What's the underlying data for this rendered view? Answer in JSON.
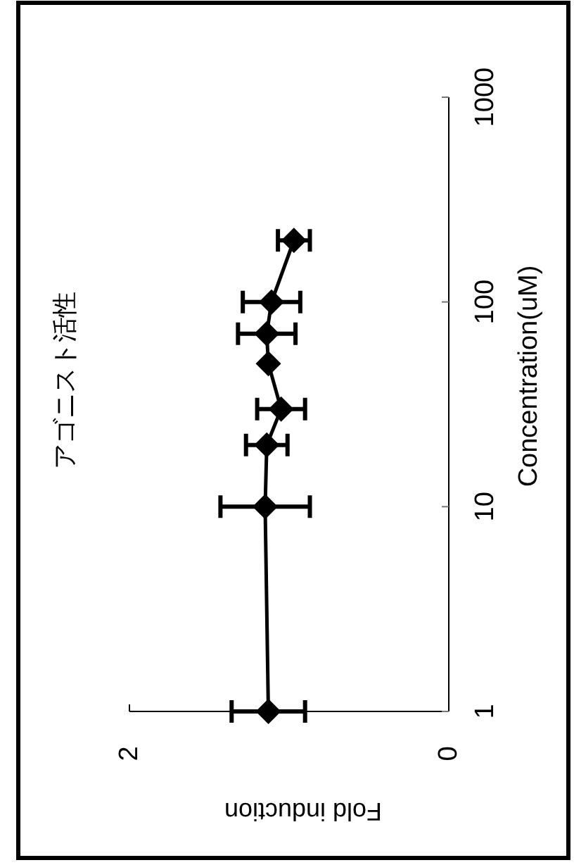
{
  "chart_data": {
    "type": "line",
    "title": "アゴニスト活性",
    "xlabel": "Fold induction",
    "ylabel": "Concentration(uM)",
    "series": [
      {
        "color": "#000000",
        "x": [
          1.13,
          1.15,
          1.14,
          1.05,
          1.13,
          1.14,
          1.11,
          0.97
        ],
        "values": [
          1,
          10,
          20,
          30,
          50,
          70,
          100,
          200
        ],
        "xerrors": [
          0.23,
          0.28,
          0.13,
          0.15,
          null,
          0.18,
          0.18,
          0.1
        ]
      }
    ],
    "log": "y",
    "xlim": [
      2,
      0
    ],
    "xticks": [
      0,
      2
    ],
    "ylim": [
      1,
      1000
    ],
    "yticks": [
      1,
      10,
      100,
      1000
    ],
    "marker": "diamond",
    "line_style": "solid",
    "grid": false
  }
}
